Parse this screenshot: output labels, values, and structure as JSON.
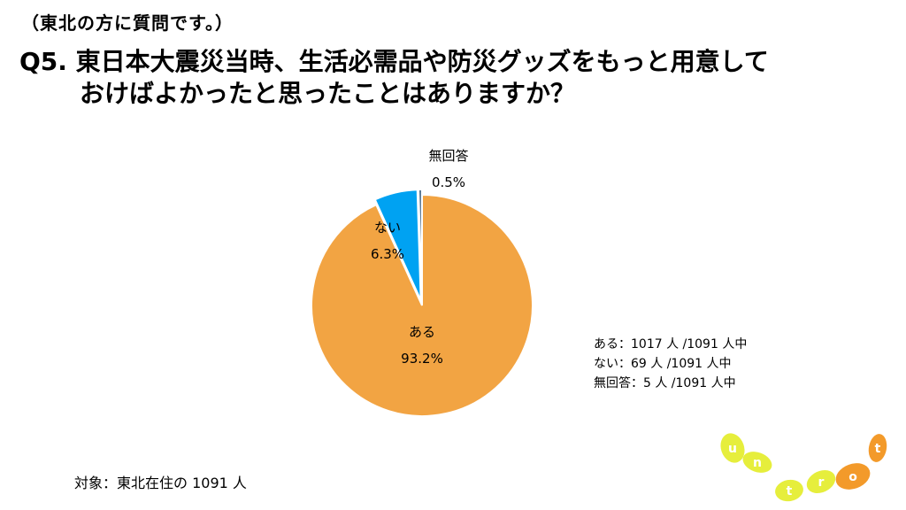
{
  "header": {
    "subtitle": "（東北の方に質問です。）",
    "title_line1": "Q5. 東日本大震災当時、生活必需品や防災グッズをもっと用意して",
    "title_line2": "おけばよかったと思ったことはありますか？"
  },
  "chart_data": {
    "type": "pie",
    "start_angle_deg": 0,
    "direction": "clockwise",
    "slices": [
      {
        "label": "ある",
        "value": 93.2,
        "value_label": "93.2%",
        "color": "#F2A443"
      },
      {
        "label": "ない",
        "value": 6.3,
        "value_label": "6.3%",
        "color": "#00A2F2"
      },
      {
        "label": "無回答",
        "value": 0.5,
        "value_label": "0.5%",
        "color": "#4D6E8C"
      }
    ]
  },
  "notes": {
    "line1": "ある：1017 人 /1091 人中",
    "line2": "ない：69 人 /1091 人中",
    "line3": "無回答：5 人 /1091 人中"
  },
  "footer": {
    "target": "対象：東北在住の 1091 人"
  },
  "logo": {
    "letters": [
      "u",
      "n",
      "t",
      "r",
      "o",
      "t"
    ],
    "color_yellow": "#E6EE3C",
    "color_orange": "#F39A2A"
  }
}
